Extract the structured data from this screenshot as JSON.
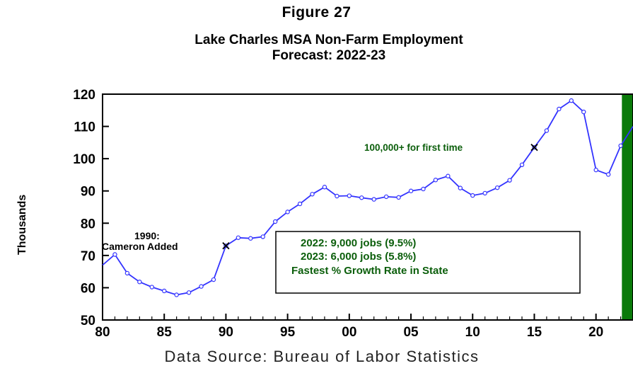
{
  "figure_label": "Figure 27",
  "title_line1": "Lake Charles MSA Non-Farm Employment",
  "title_line2": "Forecast: 2022-23",
  "ylabel": "Thousands",
  "source": "Data Source: Bureau of Labor Statistics",
  "colors": {
    "line": "#3333ff",
    "marker_fill": "#ffffff",
    "forecast_band": "#0a7a0a",
    "box_text": "#0b5e0b",
    "axis": "#000000"
  },
  "annotations": {
    "cameron_line1": "1990:",
    "cameron_line2": "Cameron Added",
    "first_time": "100,000+ for first time",
    "box_line1": "2022: 9,000 jobs (9.5%)",
    "box_line2": "2023: 6,000 jobs (5.8%)",
    "box_line3": "Fastest % Growth Rate in State"
  },
  "chart_data": {
    "type": "line",
    "title": "Lake Charles MSA Non-Farm Employment Forecast: 2022-23",
    "ylabel": "Thousands",
    "xlim": [
      1980,
      2023
    ],
    "ylim": [
      50,
      120
    ],
    "xticks": [
      1980,
      1985,
      1990,
      1995,
      2000,
      2005,
      2010,
      2015,
      2020
    ],
    "xtick_labels": [
      "80",
      "85",
      "90",
      "95",
      "00",
      "05",
      "10",
      "15",
      "20"
    ],
    "yticks": [
      50,
      60,
      70,
      80,
      90,
      100,
      110,
      120
    ],
    "ytick_labels": [
      "50",
      "60",
      "70",
      "80",
      "90",
      "100",
      "110",
      "120"
    ],
    "forecast_band": [
      2022,
      2023
    ],
    "x": [
      1980,
      1981,
      1982,
      1983,
      1984,
      1985,
      1986,
      1987,
      1988,
      1989,
      1990,
      1991,
      1992,
      1993,
      1994,
      1995,
      1996,
      1997,
      1998,
      1999,
      2000,
      2001,
      2002,
      2003,
      2004,
      2005,
      2006,
      2007,
      2008,
      2009,
      2010,
      2011,
      2012,
      2013,
      2014,
      2015,
      2016,
      2017,
      2018,
      2019,
      2020,
      2021,
      2022,
      2023
    ],
    "values": [
      67.0,
      70.3,
      64.5,
      61.8,
      60.2,
      59.0,
      57.8,
      58.5,
      60.4,
      62.5,
      73.0,
      75.5,
      75.3,
      75.8,
      80.5,
      83.5,
      86.0,
      89.0,
      91.2,
      88.4,
      88.5,
      87.9,
      87.4,
      88.2,
      88.0,
      90.0,
      90.6,
      93.4,
      94.6,
      90.9,
      88.6,
      89.3,
      91.0,
      93.3,
      98.1,
      103.5,
      108.7,
      115.4,
      118.0,
      114.5,
      96.5,
      95.1,
      104.0,
      110.0
    ],
    "markers": [
      {
        "x": 1990,
        "y": 73.0,
        "label": "1990: Cameron Added"
      },
      {
        "x": 2015,
        "y": 103.5,
        "label": "100,000+ for first time"
      }
    ]
  }
}
